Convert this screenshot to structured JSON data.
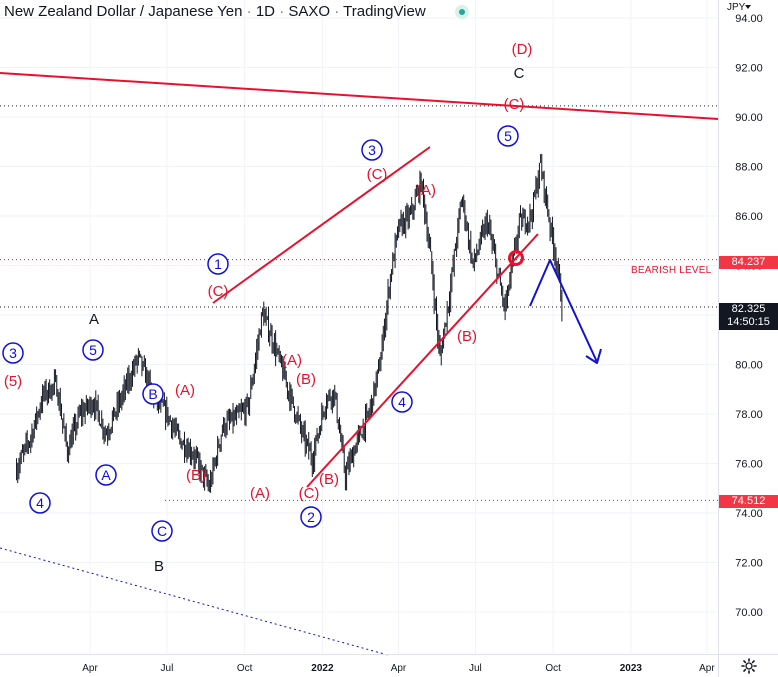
{
  "header": {
    "symbol_name": "New Zealand Dollar / Japanese Yen",
    "interval": "1D",
    "exchange": "SAXO",
    "provider": "TradingView",
    "currency": "JPY"
  },
  "price_scale": {
    "current_price": "82.325",
    "countdown": "14:50:15",
    "bearish_level_price": "84.237",
    "bearish_level_label": "BEARISH LEVEL",
    "support_price": "74.512"
  },
  "colors": {
    "wave_red": "#e8112d",
    "wave_blue": "#1010d8",
    "candles": "#131722",
    "grid": "#f0f3fa"
  },
  "icons": {
    "settings": "gear-icon",
    "live_status": "live-dot-icon"
  },
  "chart_data": {
    "type": "line",
    "title": "New Zealand Dollar / Japanese Yen · 1D · SAXO · TradingView",
    "xlabel": "",
    "ylabel": "",
    "ylim": [
      68,
      95
    ],
    "grid": true,
    "x_tick_labels": [
      "Apr",
      "Jul",
      "Oct",
      "2022",
      "Apr",
      "Jul",
      "Oct",
      "2023",
      "Apr"
    ],
    "y_ticks": [
      70.0,
      72.0,
      74.0,
      76.0,
      78.0,
      80.0,
      82.0,
      84.0,
      86.0,
      88.0,
      90.0,
      92.0,
      94.0
    ],
    "series": [
      {
        "values": [
          {
            "x": "2021-01-04",
            "y": 75.8
          },
          {
            "x": "2021-01-20",
            "y": 77.0
          },
          {
            "x": "2021-02-05",
            "y": 78.8
          },
          {
            "x": "2021-02-20",
            "y": 79.2
          },
          {
            "x": "2021-03-05",
            "y": 76.5
          },
          {
            "x": "2021-03-20",
            "y": 78.0
          },
          {
            "x": "2021-04-05",
            "y": 78.5
          },
          {
            "x": "2021-04-20",
            "y": 77.2
          },
          {
            "x": "2021-05-10",
            "y": 78.8
          },
          {
            "x": "2021-05-28",
            "y": 80.3
          },
          {
            "x": "2021-06-15",
            "y": 78.7
          },
          {
            "x": "2021-07-01",
            "y": 78.0
          },
          {
            "x": "2021-07-15",
            "y": 77.0
          },
          {
            "x": "2021-08-01",
            "y": 76.4
          },
          {
            "x": "2021-08-20",
            "y": 75.0
          },
          {
            "x": "2021-09-05",
            "y": 77.5
          },
          {
            "x": "2021-09-20",
            "y": 77.8
          },
          {
            "x": "2021-10-05",
            "y": 78.3
          },
          {
            "x": "2021-10-15",
            "y": 80.5
          },
          {
            "x": "2021-10-22",
            "y": 82.1
          },
          {
            "x": "2021-11-05",
            "y": 80.8
          },
          {
            "x": "2021-11-25",
            "y": 78.6
          },
          {
            "x": "2021-12-10",
            "y": 77.0
          },
          {
            "x": "2021-12-20",
            "y": 76.2
          },
          {
            "x": "2022-01-05",
            "y": 78.6
          },
          {
            "x": "2022-01-15",
            "y": 78.9
          },
          {
            "x": "2022-01-28",
            "y": 75.5
          },
          {
            "x": "2022-02-10",
            "y": 76.8
          },
          {
            "x": "2022-02-25",
            "y": 78.0
          },
          {
            "x": "2022-03-10",
            "y": 80.0
          },
          {
            "x": "2022-03-22",
            "y": 83.5
          },
          {
            "x": "2022-04-01",
            "y": 85.5
          },
          {
            "x": "2022-04-15",
            "y": 86.0
          },
          {
            "x": "2022-04-28",
            "y": 87.4
          },
          {
            "x": "2022-05-10",
            "y": 84.0
          },
          {
            "x": "2022-05-20",
            "y": 80.2
          },
          {
            "x": "2022-06-01",
            "y": 83.0
          },
          {
            "x": "2022-06-15",
            "y": 86.8
          },
          {
            "x": "2022-06-28",
            "y": 84.0
          },
          {
            "x": "2022-07-15",
            "y": 85.8
          },
          {
            "x": "2022-08-05",
            "y": 82.2
          },
          {
            "x": "2022-08-22",
            "y": 85.7
          },
          {
            "x": "2022-09-05",
            "y": 86.0
          },
          {
            "x": "2022-09-16",
            "y": 88.1
          },
          {
            "x": "2022-09-28",
            "y": 85.5
          },
          {
            "x": "2022-10-05",
            "y": 84.2
          },
          {
            "x": "2022-10-12",
            "y": 82.3
          }
        ]
      }
    ],
    "annotations": {
      "red_labels": [
        "(5)",
        "(A)",
        "(B)",
        "(A)",
        "(B)",
        "(A)",
        "(C)",
        "(C)",
        "(B)",
        "(C)",
        "(A)",
        "(B)",
        "(C)",
        "(D)"
      ],
      "blue_circled_labels": [
        "3",
        "4",
        "5",
        "A",
        "B",
        "C",
        "1",
        "2",
        "3",
        "4",
        "5"
      ],
      "black_labels": [
        "A",
        "B",
        "C"
      ],
      "bearish_level": "BEARISH LEVEL",
      "forecast": "Projected bounce toward 84.2 then decline toward 80"
    }
  }
}
